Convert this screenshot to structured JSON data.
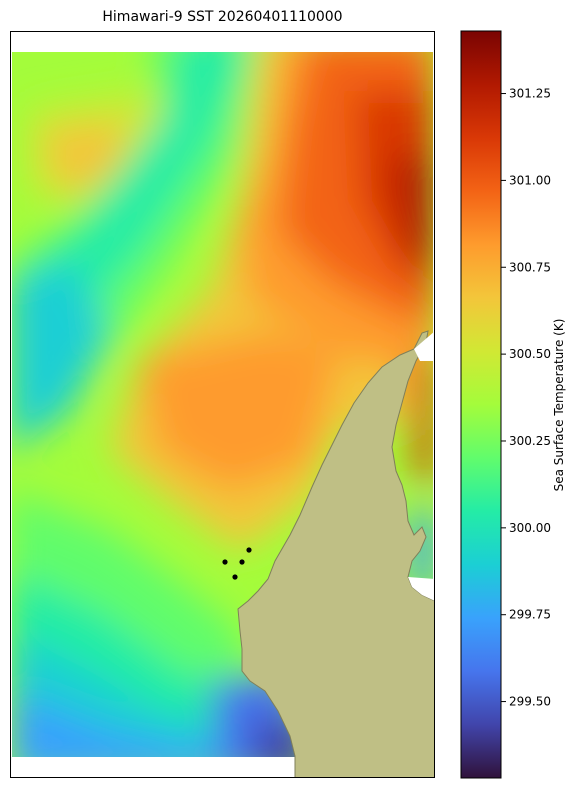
{
  "title": "Himawari-9 SST 20260401110000",
  "colorbar": {
    "label": "Sea Surface Temperature (K)",
    "min": 299.28,
    "max": 301.43,
    "ticks": [
      "299.50",
      "299.75",
      "300.00",
      "300.25",
      "300.50",
      "300.75",
      "301.00",
      "301.25"
    ],
    "colormap": [
      "#30123b",
      "#4145ab",
      "#4675ed",
      "#39a2fc",
      "#1bcfd4",
      "#24eca6",
      "#61fc6c",
      "#a4fc3b",
      "#d1e834",
      "#f3c63a",
      "#fe9b2d",
      "#f36315",
      "#d93806",
      "#b11901",
      "#7a0402"
    ]
  },
  "map": {
    "land_color": "#bfbf85",
    "coast_color": "#7f7f5a",
    "markers": 4,
    "marker_color": "#000000"
  }
}
